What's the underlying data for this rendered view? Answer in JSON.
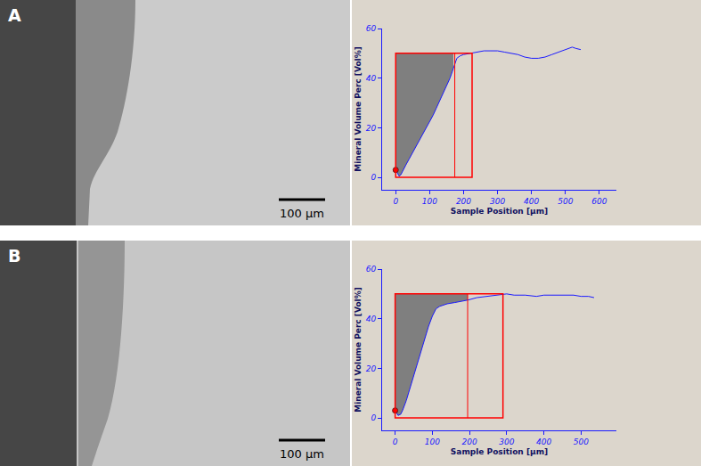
{
  "images": [
    {
      "label": "A",
      "scale_bar": "100 µm"
    },
    {
      "label": "B",
      "scale_bar": "100 µm"
    }
  ],
  "chart_data": [
    {
      "type": "line",
      "x_label": "Sample Position [µm]",
      "y_label": "Mineral Volume Perc [Vol%]",
      "xlim": [
        -40,
        650
      ],
      "xticks": [
        0,
        100,
        200,
        300,
        400,
        500,
        600
      ],
      "ylim": [
        -5,
        60
      ],
      "yticks": [
        0,
        20,
        40,
        60
      ],
      "grid": false,
      "series": [
        {
          "color": "#1a1aff",
          "x": [
            0,
            5,
            10,
            15,
            20,
            30,
            40,
            50,
            60,
            70,
            80,
            90,
            100,
            110,
            120,
            130,
            140,
            150,
            160,
            170,
            175,
            180,
            190,
            200,
            220,
            240,
            260,
            280,
            300,
            320,
            340,
            360,
            380,
            400,
            420,
            440,
            460,
            480,
            500,
            520,
            530,
            545
          ],
          "values": [
            3,
            1.5,
            0.5,
            1,
            2.5,
            5,
            7.5,
            10,
            12.5,
            15,
            17.5,
            19.5,
            22,
            25,
            28,
            31,
            34,
            37,
            40,
            44,
            46.5,
            48,
            49,
            49.5,
            50,
            50.5,
            51,
            51,
            51,
            50.5,
            50,
            49.5,
            48.5,
            48,
            48,
            48.5,
            49.5,
            50.5,
            51.5,
            52.5,
            52,
            51.5
          ]
        }
      ],
      "box": {
        "x0": 0,
        "x1": 225,
        "y0": 0,
        "y1": 50,
        "color": "#ff0000"
      },
      "vlines": [
        174
      ],
      "fill_color": "#7f7f7f",
      "start_point": {
        "x": 0,
        "y": 3,
        "color": "#ff0000"
      }
    },
    {
      "type": "line",
      "x_label": "Sample Position [µm]",
      "y_label": "Mineral Volume Perc [Vol%]",
      "xlim": [
        -35,
        595
      ],
      "xticks": [
        0,
        100,
        200,
        300,
        400,
        500
      ],
      "ylim": [
        -5,
        60
      ],
      "yticks": [
        0,
        20,
        40,
        60
      ],
      "grid": false,
      "series": [
        {
          "color": "#1a1aff",
          "x": [
            0,
            8,
            15,
            20,
            30,
            40,
            50,
            60,
            70,
            80,
            90,
            100,
            110,
            120,
            140,
            160,
            180,
            195,
            220,
            250,
            280,
            300,
            320,
            350,
            380,
            400,
            420,
            450,
            480,
            500,
            520,
            535
          ],
          "values": [
            3,
            1,
            1.5,
            3,
            7,
            12,
            17,
            22,
            27,
            32,
            37,
            41,
            44,
            45,
            46,
            46.5,
            47,
            47.5,
            48.5,
            49,
            49.5,
            50,
            49.5,
            49.5,
            49,
            49.5,
            49.5,
            49.5,
            49.5,
            49,
            49,
            48.5
          ]
        }
      ],
      "box": {
        "x0": 0,
        "x1": 290,
        "y0": 0,
        "y1": 50,
        "color": "#ff0000"
      },
      "vlines": [
        195
      ],
      "fill_color": "#7f7f7f",
      "start_point": {
        "x": 0,
        "y": 3,
        "color": "#ff0000"
      }
    }
  ]
}
